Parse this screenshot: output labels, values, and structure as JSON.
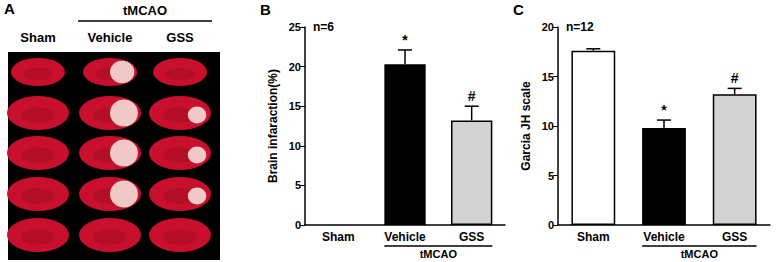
{
  "image_panel": {
    "label": "A",
    "group_label": "tMCAO",
    "columns": [
      "Sham",
      "Vehicle",
      "GSS"
    ]
  },
  "chart_data": [
    {
      "type": "bar",
      "title": "B",
      "y_label": "Brain infaraction(%)",
      "categories": [
        "Sham",
        "Vehicle",
        "GSS"
      ],
      "values": [
        0,
        20.3,
        13.2
      ],
      "errors": [
        0,
        1.8,
        1.8
      ],
      "colors": [
        "#ffffff",
        "#000000",
        "#d3d3d3"
      ],
      "ylim": [
        0,
        25
      ],
      "yticks": [
        0,
        5,
        10,
        15,
        20,
        25
      ],
      "annotations": [
        {
          "text": "n=6"
        },
        {
          "text": "*",
          "category": "Vehicle"
        },
        {
          "text": "#",
          "category": "GSS"
        },
        {
          "text": "tMCAO",
          "categories": [
            "Vehicle",
            "GSS"
          ]
        }
      ]
    },
    {
      "type": "bar",
      "title": "C",
      "y_label": "Garcia JH scale",
      "categories": [
        "Sham",
        "Vehicle",
        "GSS"
      ],
      "values": [
        17.6,
        9.8,
        13.2
      ],
      "errors": [
        0.2,
        0.8,
        0.6
      ],
      "colors": [
        "#ffffff",
        "#000000",
        "#d3d3d3"
      ],
      "ylim": [
        0,
        20
      ],
      "yticks": [
        0,
        5,
        10,
        15,
        20
      ],
      "annotations": [
        {
          "text": "n=12"
        },
        {
          "text": "*",
          "category": "Vehicle"
        },
        {
          "text": "#",
          "category": "GSS"
        },
        {
          "text": "tMCAO",
          "categories": [
            "Vehicle",
            "GSS"
          ]
        }
      ]
    }
  ]
}
